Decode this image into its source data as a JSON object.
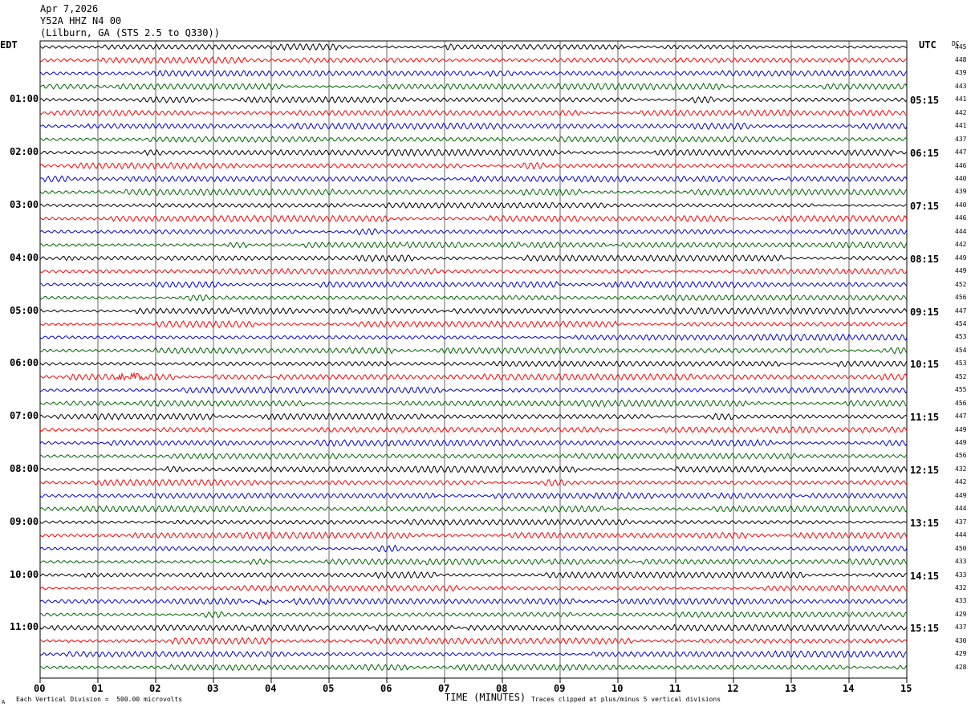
{
  "header": {
    "date": "Apr 7,2026",
    "station": "Y52A HHZ N4 00",
    "location": "(Lilburn, GA (STS 2.5 to Q330))"
  },
  "left_axis_label": "EDT",
  "right_axis_label": "UTC",
  "dc_label": "DC",
  "footer": {
    "scale_note": "Each Vertical Division =  500.00 microvolts",
    "clip_note": "Traces clipped at plus/minus 5 vertical divisions",
    "xlabel": "TIME (MINUTES)",
    "corner_mark": "A"
  },
  "chart_data": {
    "type": "line",
    "x_ticks": [
      "00",
      "01",
      "02",
      "03",
      "04",
      "05",
      "06",
      "07",
      "08",
      "09",
      "10",
      "11",
      "12",
      "13",
      "14",
      "15"
    ],
    "xlim": [
      0,
      15
    ],
    "left_hour_labels": [
      "01:00",
      "02:00",
      "03:00",
      "04:00",
      "05:00",
      "06:00",
      "07:00",
      "08:00",
      "09:00",
      "10:00",
      "11:00"
    ],
    "right_hour_labels": [
      "05:15",
      "06:15",
      "07:15",
      "08:15",
      "09:15",
      "10:15",
      "11:15",
      "12:15",
      "13:15",
      "14:15",
      "15:15"
    ],
    "trace_colors": [
      "#000000",
      "#ff0000",
      "#0000cc",
      "#006600"
    ],
    "dc_offsets": [
      445,
      448,
      439,
      443,
      441,
      442,
      441,
      437,
      447,
      446,
      440,
      439,
      440,
      446,
      444,
      442,
      449,
      449,
      452,
      456,
      447,
      454,
      453,
      454,
      453,
      452,
      455,
      456,
      447,
      449,
      449,
      456,
      432,
      442,
      449,
      444,
      437,
      444,
      450,
      433,
      433,
      432,
      433,
      429,
      437,
      430,
      429,
      428
    ],
    "events": [
      {
        "trace": 25,
        "minute_start": 1.3,
        "minute_end": 1.85
      },
      {
        "trace": 42,
        "minute_start": 3.75,
        "minute_end": 3.95
      }
    ]
  }
}
